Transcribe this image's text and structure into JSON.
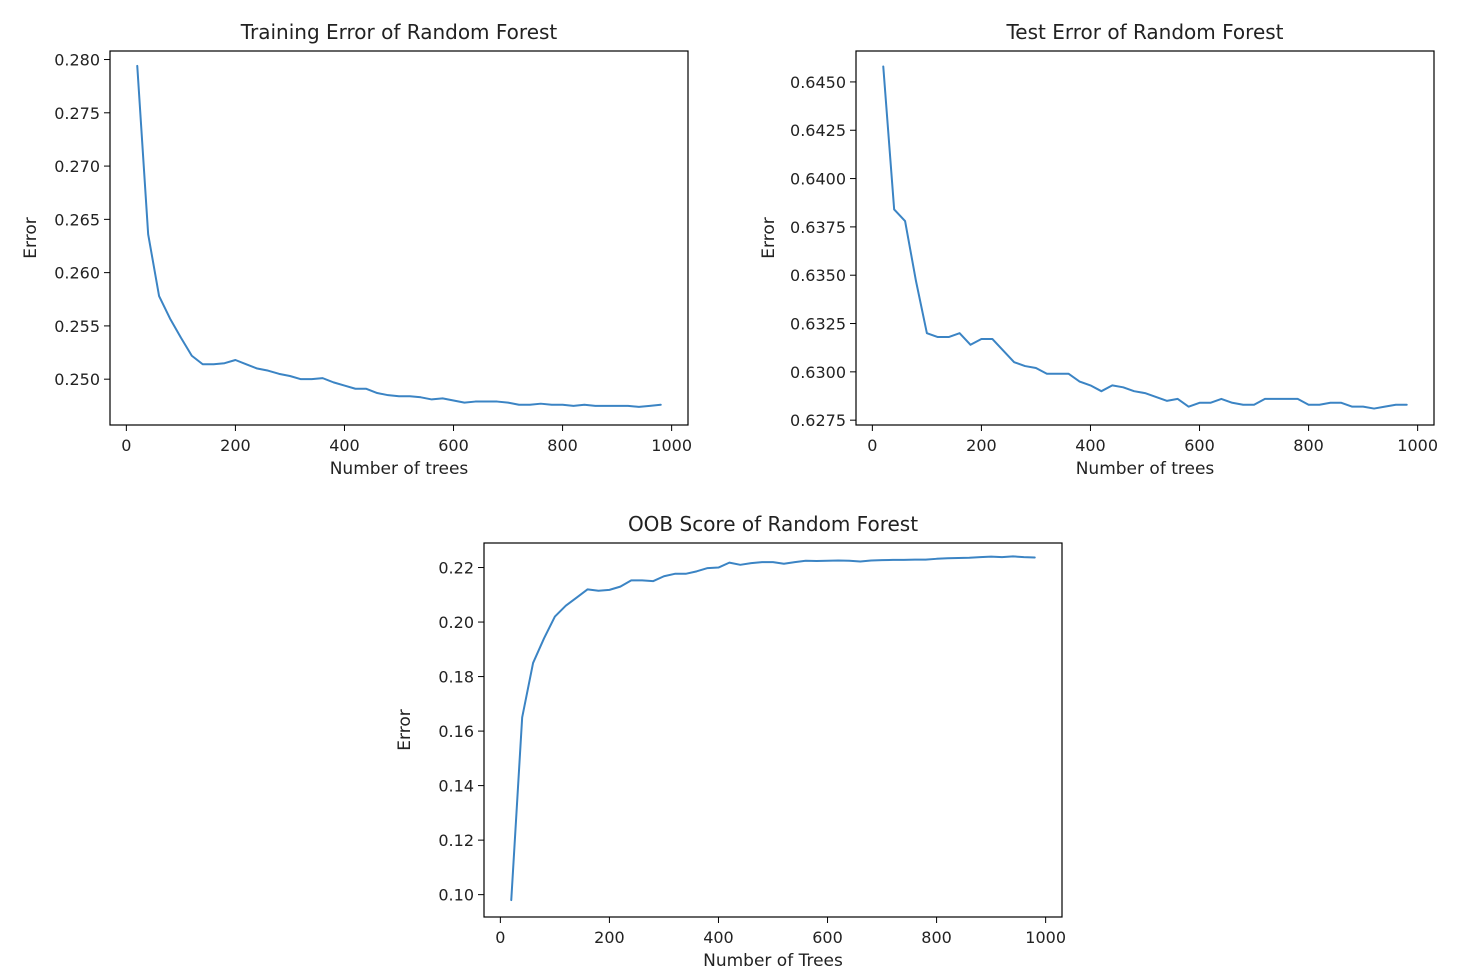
{
  "line_color": "#3b84c4",
  "chart_data": [
    {
      "type": "line",
      "title": "Training Error of Random Forest",
      "xlabel": "Number of trees",
      "ylabel": "Error",
      "xlim": [
        -30,
        1030
      ],
      "ylim": [
        0.2457,
        0.2808
      ],
      "xticks": [
        0,
        200,
        400,
        600,
        800,
        1000
      ],
      "yticks": [
        0.25,
        0.255,
        0.26,
        0.265,
        0.27,
        0.275,
        0.28
      ],
      "ytick_labels": [
        "0.250",
        "0.255",
        "0.260",
        "0.265",
        "0.270",
        "0.275",
        "0.280"
      ],
      "grid": false,
      "x": [
        20,
        40,
        60,
        80,
        100,
        120,
        140,
        160,
        180,
        200,
        220,
        240,
        260,
        280,
        300,
        320,
        340,
        360,
        380,
        400,
        420,
        440,
        460,
        480,
        500,
        520,
        540,
        560,
        580,
        600,
        620,
        640,
        660,
        680,
        700,
        720,
        740,
        760,
        780,
        800,
        820,
        840,
        860,
        880,
        900,
        920,
        940,
        960,
        980
      ],
      "series": [
        {
          "values": [
            0.2794,
            0.2636,
            0.2578,
            0.2557,
            0.2539,
            0.2522,
            0.2514,
            0.2514,
            0.2515,
            0.2518,
            0.2514,
            0.251,
            0.2508,
            0.2505,
            0.2503,
            0.25,
            0.25,
            0.2501,
            0.2497,
            0.2494,
            0.2491,
            0.2491,
            0.2487,
            0.2485,
            0.2484,
            0.2484,
            0.2483,
            0.2481,
            0.2482,
            0.248,
            0.2478,
            0.2479,
            0.2479,
            0.2479,
            0.2478,
            0.2476,
            0.2476,
            0.2477,
            0.2476,
            0.2476,
            0.2475,
            0.2476,
            0.2475,
            0.2475,
            0.2475,
            0.2475,
            0.2474,
            0.2475,
            0.2476
          ]
        }
      ]
    },
    {
      "type": "line",
      "title": "Test Error of Random Forest",
      "xlabel": "Number of trees",
      "ylabel": "Error",
      "xlim": [
        -30,
        1030
      ],
      "ylim": [
        0.62725,
        0.6466
      ],
      "xticks": [
        0,
        200,
        400,
        600,
        800,
        1000
      ],
      "yticks": [
        0.6275,
        0.63,
        0.6325,
        0.635,
        0.6375,
        0.64,
        0.6425,
        0.645
      ],
      "ytick_labels": [
        "0.6275",
        "0.6300",
        "0.6325",
        "0.6350",
        "0.6375",
        "0.6400",
        "0.6425",
        "0.6450"
      ],
      "grid": false,
      "x": [
        20,
        40,
        60,
        80,
        100,
        120,
        140,
        160,
        180,
        200,
        220,
        240,
        260,
        280,
        300,
        320,
        340,
        360,
        380,
        400,
        420,
        440,
        460,
        480,
        500,
        520,
        540,
        560,
        580,
        600,
        620,
        640,
        660,
        680,
        700,
        720,
        740,
        760,
        780,
        800,
        820,
        840,
        860,
        880,
        900,
        920,
        940,
        960,
        980
      ],
      "series": [
        {
          "values": [
            0.6458,
            0.6384,
            0.6378,
            0.6347,
            0.632,
            0.6318,
            0.6318,
            0.632,
            0.6314,
            0.6317,
            0.6317,
            0.6311,
            0.6305,
            0.6303,
            0.6302,
            0.6299,
            0.6299,
            0.6299,
            0.6295,
            0.6293,
            0.629,
            0.6293,
            0.6292,
            0.629,
            0.6289,
            0.6287,
            0.6285,
            0.6286,
            0.6282,
            0.6284,
            0.6284,
            0.6286,
            0.6284,
            0.6283,
            0.6283,
            0.6286,
            0.6286,
            0.6286,
            0.6286,
            0.6283,
            0.6283,
            0.6284,
            0.6284,
            0.6282,
            0.6282,
            0.6281,
            0.6282,
            0.6283,
            0.6283
          ]
        }
      ]
    },
    {
      "type": "line",
      "title": "OOB Score of Random Forest",
      "xlabel": "Number of Trees",
      "ylabel": "Error",
      "xlim": [
        -30,
        1030
      ],
      "ylim": [
        0.0918,
        0.229
      ],
      "xticks": [
        0,
        200,
        400,
        600,
        800,
        1000
      ],
      "yticks": [
        0.1,
        0.12,
        0.14,
        0.16,
        0.18,
        0.2,
        0.22
      ],
      "ytick_labels": [
        "0.10",
        "0.12",
        "0.14",
        "0.16",
        "0.18",
        "0.20",
        "0.22"
      ],
      "grid": false,
      "x": [
        20,
        40,
        60,
        80,
        100,
        120,
        140,
        160,
        180,
        200,
        220,
        240,
        260,
        280,
        300,
        320,
        340,
        360,
        380,
        400,
        420,
        440,
        460,
        480,
        500,
        520,
        540,
        560,
        580,
        600,
        620,
        640,
        660,
        680,
        700,
        720,
        740,
        760,
        780,
        800,
        820,
        840,
        860,
        880,
        900,
        920,
        940,
        960,
        980
      ],
      "series": [
        {
          "values": [
            0.098,
            0.165,
            0.185,
            0.194,
            0.202,
            0.206,
            0.209,
            0.212,
            0.2115,
            0.2118,
            0.213,
            0.2153,
            0.2153,
            0.215,
            0.2168,
            0.2177,
            0.2177,
            0.2186,
            0.2198,
            0.22,
            0.2218,
            0.221,
            0.2216,
            0.222,
            0.222,
            0.2214,
            0.222,
            0.2225,
            0.2224,
            0.2225,
            0.2226,
            0.2225,
            0.2222,
            0.2226,
            0.2227,
            0.2228,
            0.2228,
            0.2229,
            0.2229,
            0.2232,
            0.2234,
            0.2235,
            0.2236,
            0.2238,
            0.224,
            0.2238,
            0.2241,
            0.2238,
            0.2237
          ]
        }
      ]
    }
  ]
}
